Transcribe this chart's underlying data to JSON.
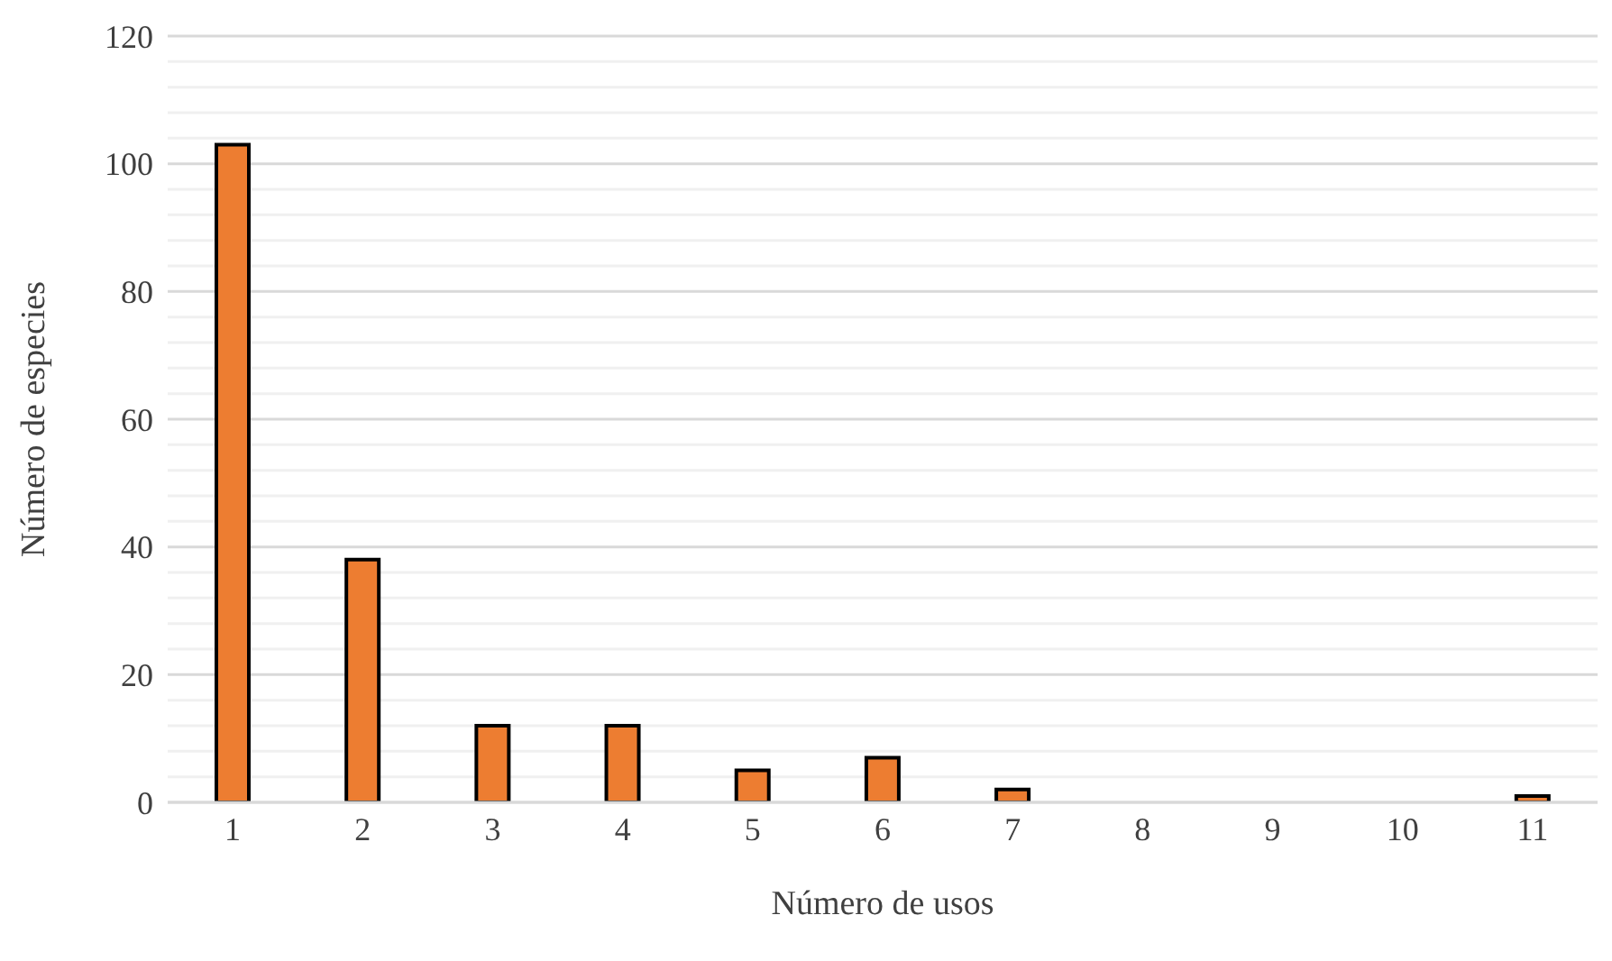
{
  "chart_data": {
    "type": "bar",
    "xlabel": "Número de usos",
    "ylabel": "Número de especies",
    "categories": [
      "1",
      "2",
      "3",
      "4",
      "5",
      "6",
      "7",
      "8",
      "9",
      "10",
      "11"
    ],
    "values": [
      103,
      38,
      12,
      12,
      5,
      7,
      2,
      0,
      0,
      0,
      1
    ],
    "color": "#ed7d31",
    "ylim": [
      0,
      120
    ],
    "yticks": [
      0,
      {
        "value": 4,
        "label": null
      },
      {
        "value": 8,
        "label": null
      },
      {
        "value": 12,
        "label": null
      },
      {
        "value": 16,
        "label": null
      },
      20,
      {
        "value": 24,
        "label": null
      },
      {
        "value": 28,
        "label": null
      },
      {
        "value": 32,
        "label": null
      },
      {
        "value": 36,
        "label": null
      },
      40,
      {
        "value": 44,
        "label": null
      },
      {
        "value": 48,
        "label": null
      },
      {
        "value": 52,
        "label": null
      },
      {
        "value": 56,
        "label": null
      },
      60,
      {
        "value": 64,
        "label": null
      },
      {
        "value": 68,
        "label": null
      },
      {
        "value": 72,
        "label": null
      },
      {
        "value": 76,
        "label": null
      },
      80,
      {
        "value": 84,
        "label": null
      },
      {
        "value": 88,
        "label": null
      },
      {
        "value": 92,
        "label": null
      },
      {
        "value": 96,
        "label": null
      },
      100,
      {
        "value": 104,
        "label": null
      },
      {
        "value": 108,
        "label": null
      },
      {
        "value": 112,
        "label": null
      },
      {
        "value": 116,
        "label": null
      },
      120
    ],
    "grid": "y",
    "legend": false
  }
}
